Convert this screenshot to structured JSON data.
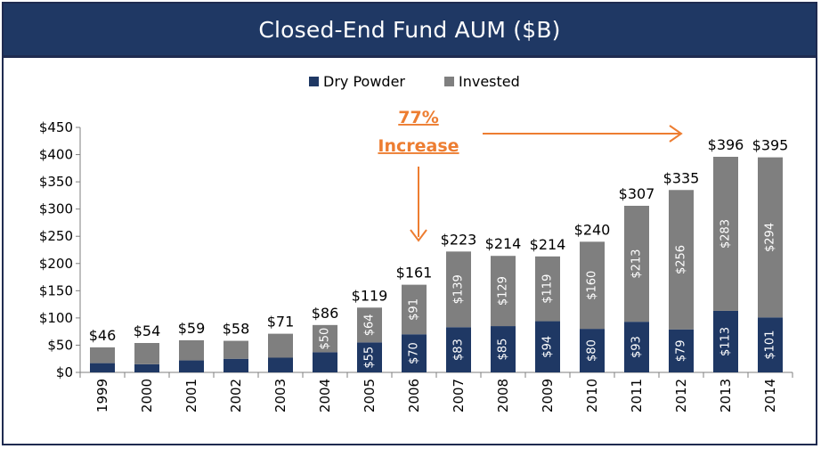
{
  "title": "Closed-End Fund AUM ($B)",
  "annotation": {
    "line1": "77%",
    "line2": "Increase"
  },
  "colors": {
    "dry_powder": "#1f3864",
    "invested": "#7f7f7f",
    "accent": "#ed7d31",
    "header": "#1f3864"
  },
  "chart_data": {
    "type": "bar",
    "stacked": true,
    "title": "Closed-End Fund AUM ($B)",
    "categories": [
      "1999",
      "2000",
      "2001",
      "2002",
      "2003",
      "2004",
      "2005",
      "2006",
      "2007",
      "2008",
      "2009",
      "2010",
      "2011",
      "2012",
      "2013",
      "2014"
    ],
    "series": [
      {
        "name": "Dry Powder",
        "values": [
          17,
          15,
          22,
          25,
          27,
          37,
          55,
          70,
          83,
          85,
          94,
          80,
          93,
          79,
          113,
          101
        ],
        "labels": [
          "",
          "",
          "",
          "",
          "",
          "",
          "$55",
          "$70",
          "$83",
          "$85",
          "$94",
          "$80",
          "$93",
          "$79",
          "$113",
          "$101"
        ]
      },
      {
        "name": "Invested",
        "values": [
          29,
          39,
          37,
          33,
          44,
          50,
          64,
          91,
          139,
          129,
          119,
          160,
          213,
          256,
          283,
          294
        ],
        "labels": [
          "",
          "",
          "",
          "",
          "",
          "$50",
          "$64",
          "$91",
          "$139",
          "$129",
          "$119",
          "$160",
          "$213",
          "$256",
          "$283",
          "$294"
        ]
      }
    ],
    "totals": [
      "$46",
      "$54",
      "$59",
      "$58",
      "$71",
      "$86",
      "$119",
      "$161",
      "$223",
      "$214",
      "$214",
      "$240",
      "$307",
      "$335",
      "$396",
      "$395"
    ],
    "ylim": [
      0,
      450
    ],
    "yticks": [
      "$0",
      "$50",
      "$100",
      "$150",
      "$200",
      "$250",
      "$300",
      "$350",
      "$400",
      "$450"
    ],
    "legend_position": "top-center",
    "grid": false
  }
}
